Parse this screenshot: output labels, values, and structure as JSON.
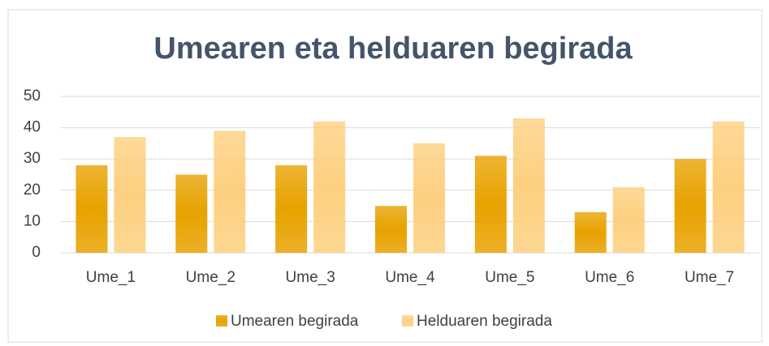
{
  "chart_data": {
    "type": "bar",
    "title": "Umearen eta helduaren begirada",
    "categories": [
      "Ume_1",
      "Ume_2",
      "Ume_3",
      "Ume_4",
      "Ume_5",
      "Ume_6",
      "Ume_7"
    ],
    "series": [
      {
        "name": "Umearen begirada",
        "color": "#e8a200",
        "values": [
          28,
          25,
          28,
          15,
          31,
          13,
          30
        ]
      },
      {
        "name": "Helduaren begirada",
        "color": "#fdd080",
        "values": [
          37,
          39,
          42,
          35,
          43,
          21,
          42
        ]
      }
    ],
    "ylim": [
      0,
      50
    ],
    "yticks": [
      0,
      10,
      20,
      30,
      40,
      50
    ],
    "grid": true,
    "legend": "bottom"
  }
}
